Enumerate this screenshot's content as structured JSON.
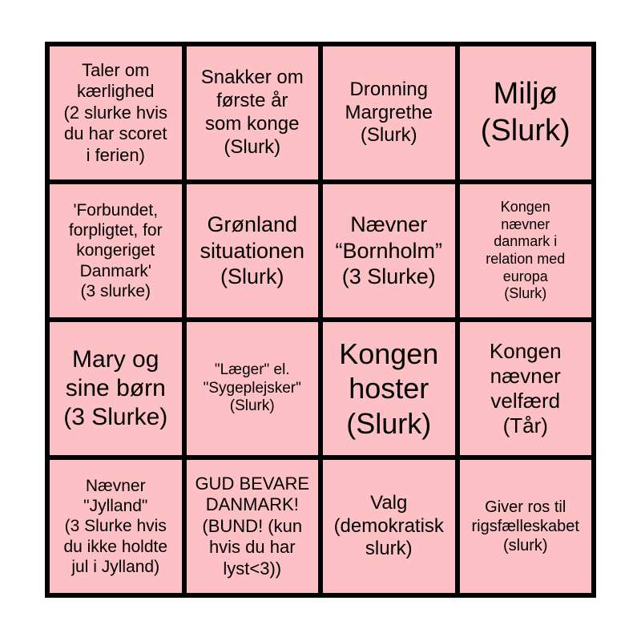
{
  "card": {
    "type": "bingo",
    "rows": 4,
    "cols": 4,
    "grid_color": "#000000",
    "cell_color": "#fcc0c5",
    "text_color": "#000000",
    "background_color": "#ffffff",
    "cells": [
      {
        "text": "Taler om\nkærlighed\n(2 slurke hvis\ndu har scoret\ni ferien)"
      },
      {
        "text": "Snakker om\nførste år\nsom konge\n(Slurk)"
      },
      {
        "text": "Dronning\nMargrethe\n(Slurk)"
      },
      {
        "text": "Miljø\n(Slurk)"
      },
      {
        "text": "'Forbundet,\nforpligtet, for\nkongeriget\nDanmark'\n(3 slurke)"
      },
      {
        "text": "Grønland\nsituationen\n(Slurk)"
      },
      {
        "text": "Nævner\n“Bornholm”\n(3 Slurke)"
      },
      {
        "text": "Kongen\nnævner\ndanmark i\nrelation med\neuropa\n(Slurk)"
      },
      {
        "text": "Mary og\nsine børn\n(3 Slurke)"
      },
      {
        "text": "\"Læger\" el.\n\"Sygeplejsker\"\n(Slurk)"
      },
      {
        "text": "Kongen\nhoster\n(Slurk)"
      },
      {
        "text": "Kongen\nnævner\nvelfærd\n(Tår)"
      },
      {
        "text": "Nævner\n\"Jylland\"\n(3 Slurke hvis\ndu ikke holdte\njul i Jylland)"
      },
      {
        "text": "GUD BEVARE\nDANMARK!\n(BUND! (kun\nhvis du har\nlyst<3))"
      },
      {
        "text": "Valg\n(demokratisk\nslurk)"
      },
      {
        "text": "Giver ros til\nrigsfælleskabet\n(slurk)"
      }
    ]
  }
}
